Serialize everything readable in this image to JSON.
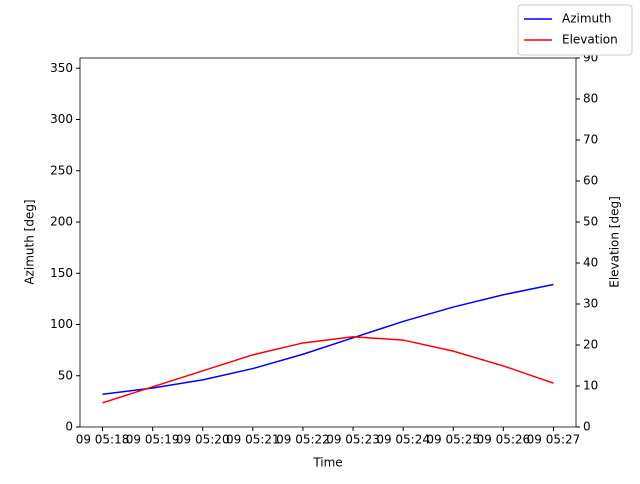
{
  "chart_data": {
    "type": "line",
    "x_label": "Time",
    "y_label": "Azimuth [deg]",
    "y2_label": "Elevation [deg]",
    "x": [
      18,
      19,
      20,
      21,
      22,
      23,
      24,
      25,
      26,
      27
    ],
    "xlim": [
      17.55,
      27.45
    ],
    "xticks": [
      {
        "value": 18,
        "label": "09 05:18"
      },
      {
        "value": 19,
        "label": "09 05:19"
      },
      {
        "value": 20,
        "label": "09 05:20"
      },
      {
        "value": 21,
        "label": "09 05:21"
      },
      {
        "value": 22,
        "label": "09 05:22"
      },
      {
        "value": 23,
        "label": "09 05:23"
      },
      {
        "value": 24,
        "label": "09 05:24"
      },
      {
        "value": 25,
        "label": "09 05:25"
      },
      {
        "value": 26,
        "label": "09 05:26"
      },
      {
        "value": 27,
        "label": "09 05:27"
      }
    ],
    "ylim": [
      0,
      360
    ],
    "yticks": [
      0,
      50,
      100,
      150,
      200,
      250,
      300,
      350
    ],
    "y2lim": [
      0,
      90
    ],
    "y2ticks": [
      0,
      10,
      20,
      30,
      40,
      50,
      60,
      70,
      80,
      90
    ],
    "legend": "upper right",
    "series": [
      {
        "name": "Azimuth",
        "color": "#0000ff",
        "values": [
          32,
          38,
          46,
          57,
          71,
          87,
          103,
          117,
          129,
          139
        ]
      },
      {
        "name": "Elevation",
        "color": "#ff0000",
        "axis": "y2",
        "values": [
          5.9,
          9.8,
          13.7,
          17.6,
          20.5,
          22,
          21.2,
          18.5,
          14.9,
          10.7
        ]
      }
    ]
  }
}
